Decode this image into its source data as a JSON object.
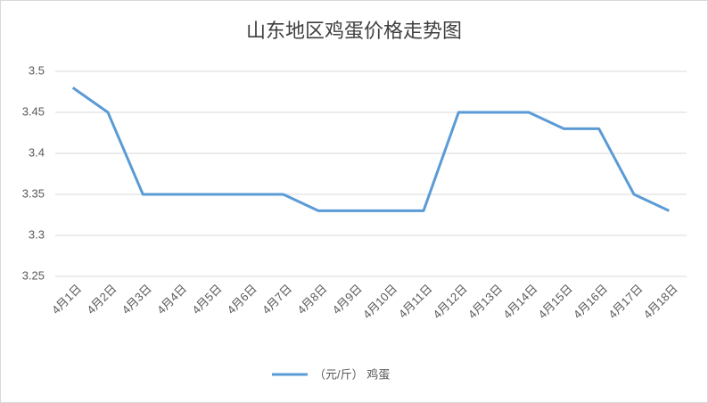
{
  "chart_data": {
    "type": "line",
    "title": "山东地区鸡蛋价格走势图",
    "categories": [
      "4月1日",
      "4月2日",
      "4月3日",
      "4月4日",
      "4月5日",
      "4月6日",
      "4月7日",
      "4月8日",
      "4月9日",
      "4月10日",
      "4月11日",
      "4月12日",
      "4月13日",
      "4月14日",
      "4月15日",
      "4月16日",
      "4月17日",
      "4月18日"
    ],
    "series": [
      {
        "name": "（元/斤） 鸡蛋",
        "color": "#5b9bd5",
        "values": [
          3.48,
          3.45,
          3.35,
          3.35,
          3.35,
          3.35,
          3.35,
          3.33,
          3.33,
          3.33,
          3.33,
          3.45,
          3.45,
          3.45,
          3.43,
          3.43,
          3.35,
          3.33
        ]
      }
    ],
    "ylim": [
      3.25,
      3.5
    ],
    "yticks": [
      3.25,
      3.3,
      3.35,
      3.4,
      3.45,
      3.5
    ],
    "grid": true,
    "legend": "bottom"
  }
}
